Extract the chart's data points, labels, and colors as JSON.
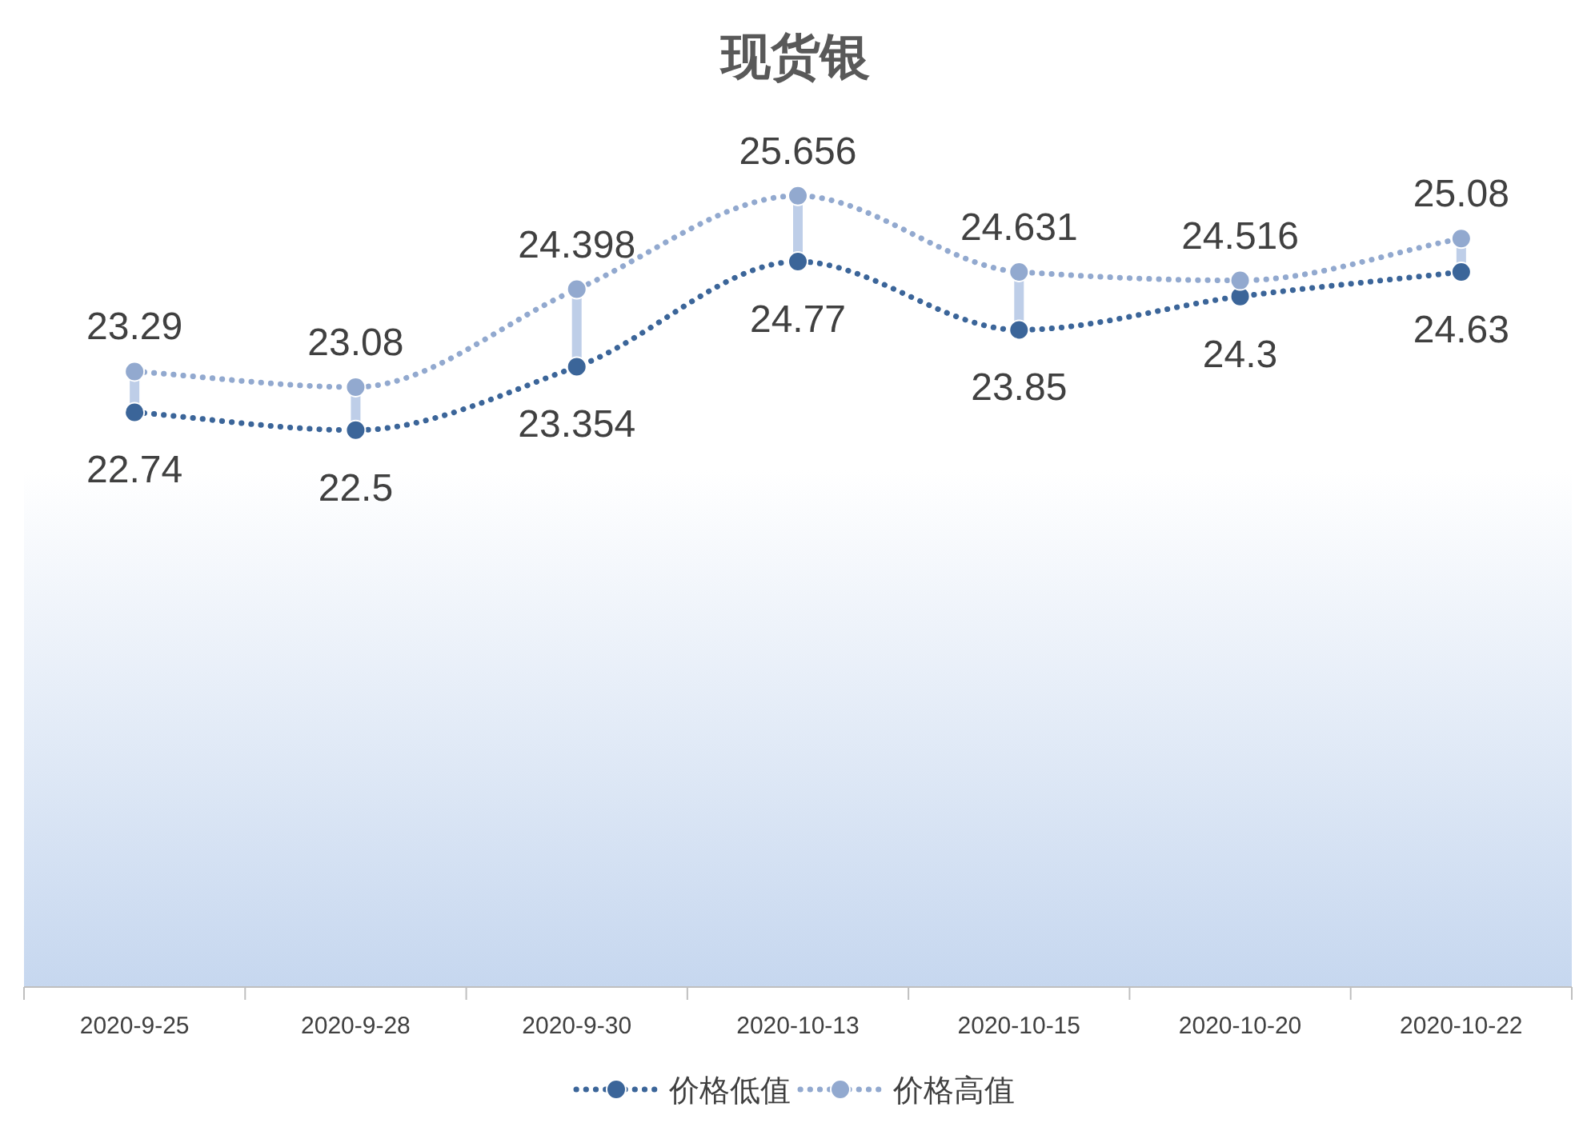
{
  "chart_data": {
    "type": "line",
    "title": "现货银",
    "categories": [
      "2020-9-25",
      "2020-9-28",
      "2020-9-30",
      "2020-10-13",
      "2020-10-15",
      "2020-10-20",
      "2020-10-22"
    ],
    "series": [
      {
        "name": "价格低值",
        "color": "#3b6599",
        "values": [
          22.74,
          22.5,
          23.354,
          24.77,
          23.85,
          24.3,
          24.63
        ]
      },
      {
        "name": "价格高值",
        "color": "#92a9cf",
        "values": [
          23.29,
          23.08,
          24.398,
          25.656,
          24.631,
          24.516,
          25.08
        ]
      }
    ],
    "ylim": [
      15,
      27
    ],
    "data_labels": true,
    "legend": "bottom",
    "marker": "circle",
    "line_style": "dotted"
  }
}
